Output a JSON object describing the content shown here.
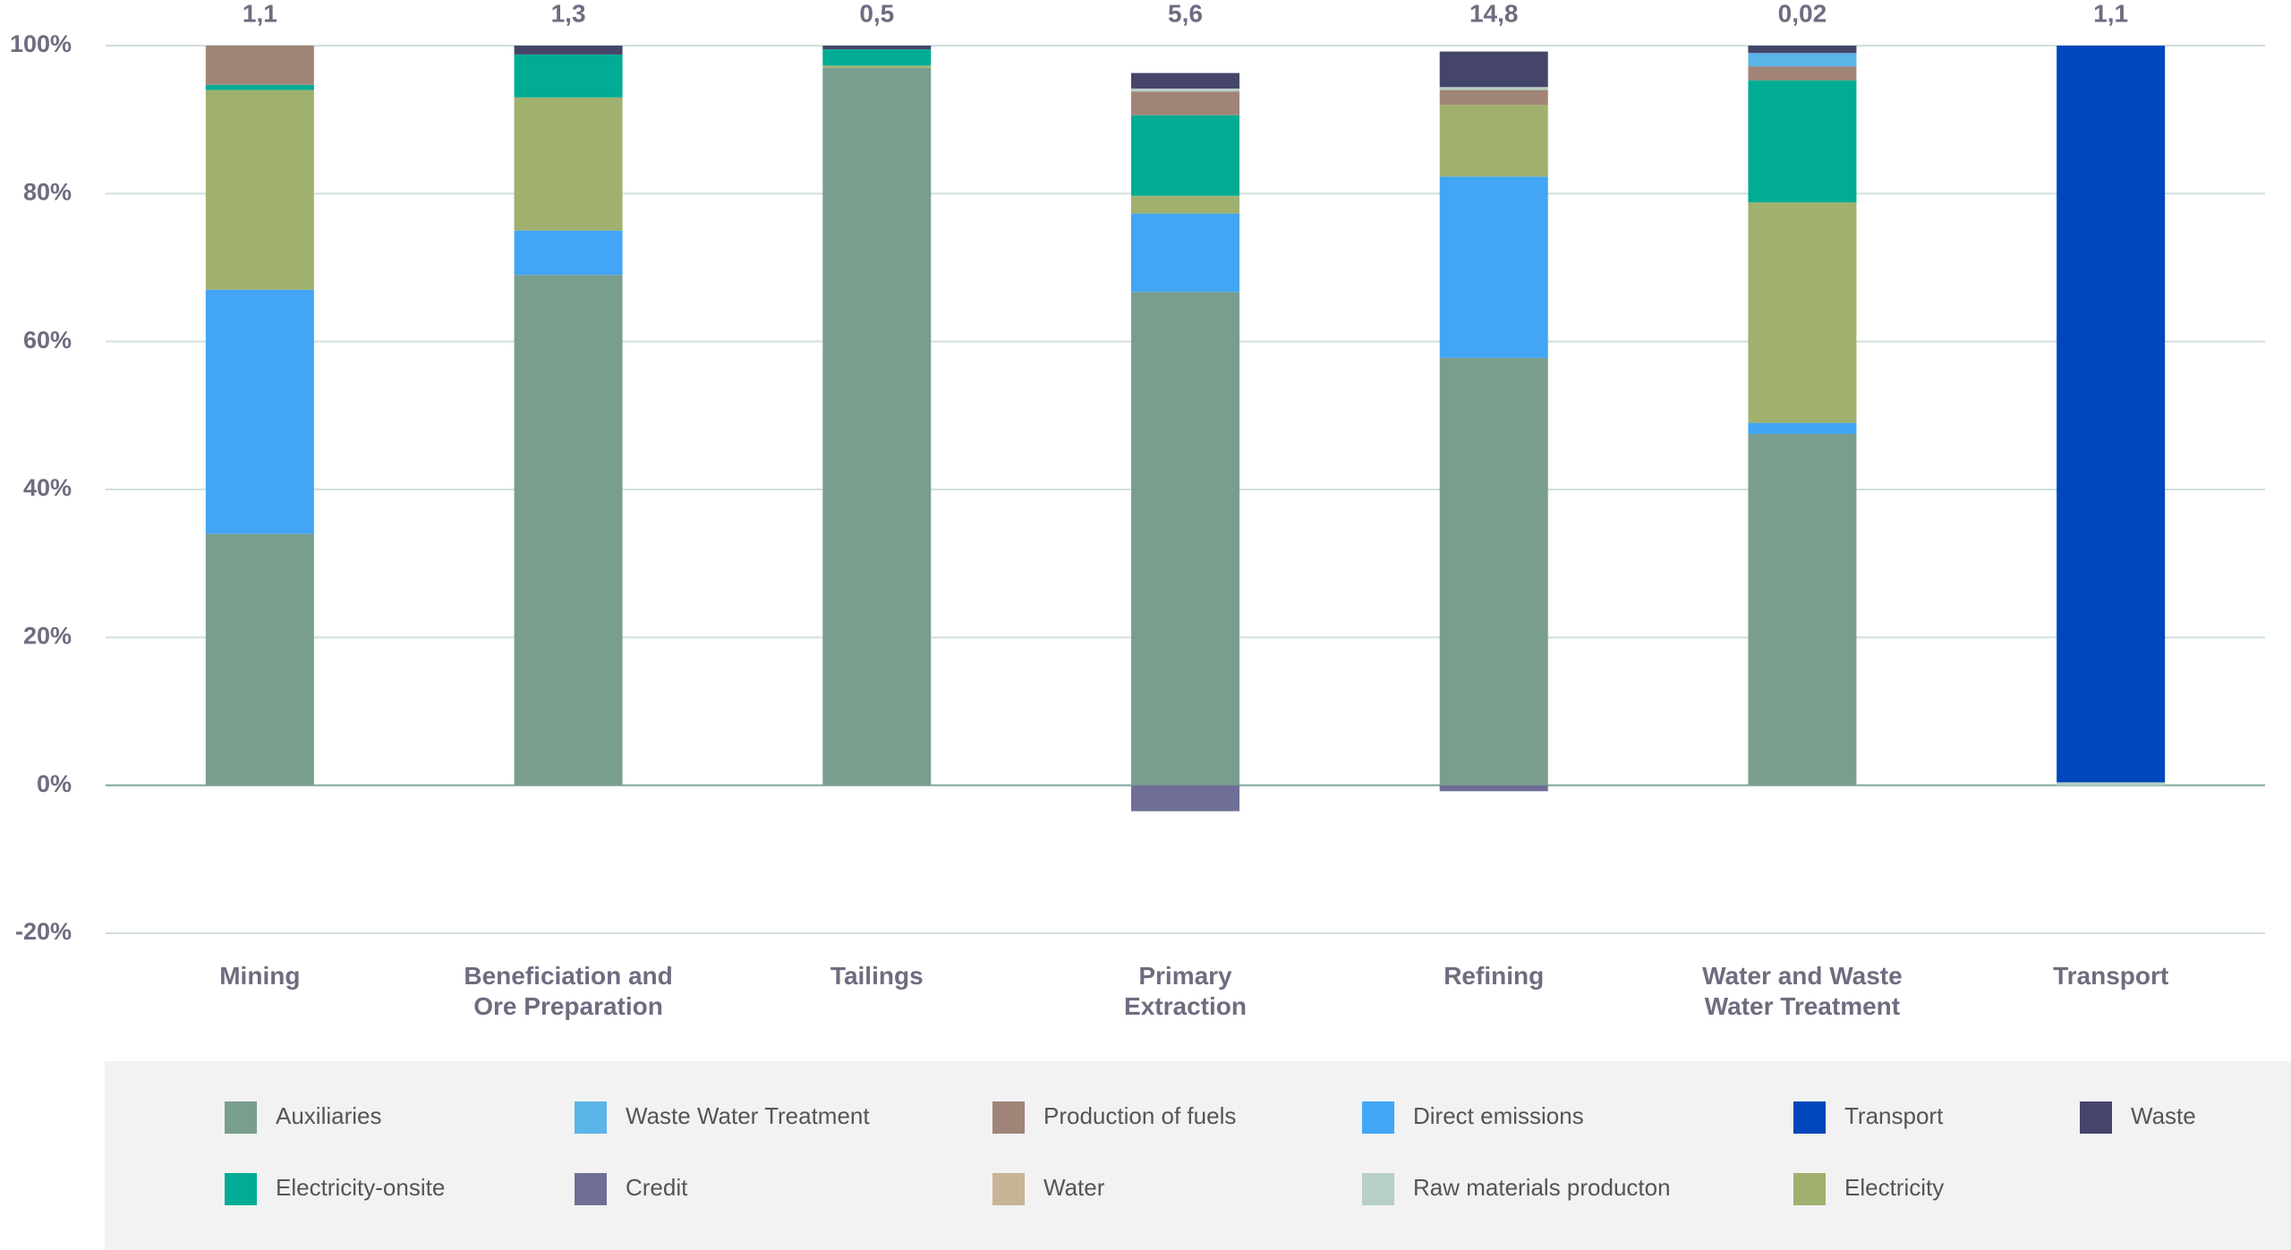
{
  "chart_data": {
    "type": "stacked_bar",
    "categories": [
      "Mining",
      "Beneficiation and\nOre Preparation",
      "Tailings",
      "Primary\nExtraction",
      "Refining",
      "Water and Waste\nWater Treatment",
      "Transport"
    ],
    "total_labels": [
      "1,1",
      "1,3",
      "0,5",
      "5,6",
      "14,8",
      "0,02",
      "1,1"
    ],
    "ylim": [
      -20,
      100
    ],
    "yticks": [
      {
        "value": -20,
        "label": "-20%"
      },
      {
        "value": 0,
        "label": "0%"
      },
      {
        "value": 20,
        "label": "20%"
      },
      {
        "value": 40,
        "label": "40%"
      },
      {
        "value": 60,
        "label": "60%"
      },
      {
        "value": 80,
        "label": "80%"
      },
      {
        "value": 100,
        "label": "100%"
      }
    ],
    "grid": true,
    "legend": "bottom",
    "series": [
      {
        "name": "Auxiliaries",
        "color": "#7a9e8e",
        "values": [
          34,
          69,
          97,
          66.7,
          57.8,
          47.5,
          null
        ]
      },
      {
        "name": "Waste Water Treatment",
        "color": "#5ab4e8",
        "values": [
          null,
          null,
          null,
          null,
          null,
          1.8,
          null
        ]
      },
      {
        "name": "Production of fuels",
        "color": "#a08478",
        "values": [
          5.3,
          null,
          null,
          3.2,
          2,
          1.9,
          null
        ]
      },
      {
        "name": "Direct emissions",
        "color": "#42a5f5",
        "values": [
          33,
          6,
          null,
          10.6,
          24.5,
          1.5,
          null
        ]
      },
      {
        "name": "Transport",
        "color": "#0047bb",
        "values": [
          null,
          null,
          null,
          null,
          null,
          null,
          99.6
        ]
      },
      {
        "name": "Waste",
        "color": "#45456a",
        "values": [
          null,
          1.2,
          0.5,
          2.1,
          4.8,
          1,
          null
        ]
      },
      {
        "name": "Electricity-onsite",
        "color": "#00ac94",
        "values": [
          0.7,
          5.8,
          2.2,
          10.9,
          null,
          16.5,
          null
        ]
      },
      {
        "name": "Credit",
        "color": "#6e6e96",
        "values": [
          null,
          null,
          null,
          -3.5,
          -0.8,
          null,
          null
        ]
      },
      {
        "name": "Water",
        "color": "#c8b496",
        "values": [
          null,
          null,
          null,
          null,
          null,
          null,
          null
        ]
      },
      {
        "name": "Raw materials producton",
        "color": "#b8cfc6",
        "values": [
          null,
          null,
          null,
          0.4,
          0.4,
          null,
          0.4
        ]
      },
      {
        "name": "Electricity",
        "color": "#a0b06e",
        "values": [
          27,
          18,
          0.3,
          2.4,
          9.7,
          29.8,
          null
        ]
      }
    ]
  }
}
